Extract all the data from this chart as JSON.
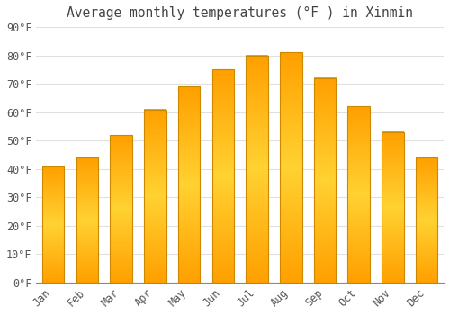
{
  "title": "Average monthly temperatures (°F ) in Xinmin",
  "months": [
    "Jan",
    "Feb",
    "Mar",
    "Apr",
    "May",
    "Jun",
    "Jul",
    "Aug",
    "Sep",
    "Oct",
    "Nov",
    "Dec"
  ],
  "values": [
    41,
    44,
    52,
    61,
    69,
    75,
    80,
    81,
    72,
    62,
    53,
    44
  ],
  "bar_color_top": "#FFAA00",
  "bar_color_center": "#FFD040",
  "bar_edge_color": "#CC8800",
  "ylim": [
    0,
    90
  ],
  "yticks": [
    0,
    10,
    20,
    30,
    40,
    50,
    60,
    70,
    80,
    90
  ],
  "ylabel_suffix": "°F",
  "background_color": "#FFFFFF",
  "plot_bg_color": "#FFFFFF",
  "grid_color": "#E0E0E0",
  "tick_label_color": "#555555",
  "title_color": "#444444",
  "title_fontsize": 10.5,
  "tick_fontsize": 8.5,
  "bar_width": 0.65
}
